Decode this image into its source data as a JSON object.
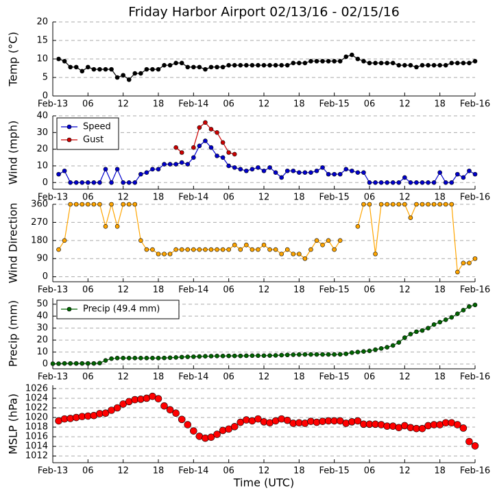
{
  "title": "Friday Harbor Airport 02/13/16 - 02/15/16",
  "xlabel": "Time (UTC)",
  "chart_data": [
    {
      "type": "line",
      "ylabel": "Temp (°C)",
      "color": "#000000",
      "grid": true,
      "xlim": [
        0,
        72
      ],
      "xticks": [
        {
          "value": 0,
          "label": "Feb-13"
        },
        {
          "value": 6,
          "label": "06"
        },
        12,
        18,
        {
          "value": 24,
          "label": "Feb-14"
        },
        {
          "value": 30,
          "label": "06"
        },
        {
          "value": 36,
          "label": "12"
        },
        {
          "value": 42,
          "label": "18"
        },
        {
          "value": 48,
          "label": "Feb-15"
        },
        {
          "value": 54,
          "label": "06"
        },
        {
          "value": 60,
          "label": "12"
        },
        {
          "value": 66,
          "label": "18"
        },
        {
          "value": 72,
          "label": "Feb-16"
        }
      ],
      "ylim": [
        0,
        20
      ],
      "yticks": [
        0,
        5,
        10,
        15,
        20
      ],
      "x": [
        1,
        2,
        3,
        4,
        5,
        6,
        7,
        8,
        9,
        10,
        11,
        12,
        13,
        14,
        15,
        16,
        17,
        18,
        19,
        20,
        21,
        22,
        23,
        24,
        25,
        26,
        27,
        28,
        29,
        30,
        31,
        32,
        33,
        34,
        35,
        36,
        37,
        38,
        39,
        40,
        41,
        42,
        43,
        44,
        45,
        46,
        47,
        48,
        49,
        50,
        51,
        52,
        53,
        54,
        55,
        56,
        57,
        58,
        59,
        60,
        61,
        62,
        63,
        64,
        65,
        66,
        67,
        68,
        69,
        70,
        71,
        72
      ],
      "values": [
        10,
        9.4,
        7.8,
        7.8,
        6.7,
        7.8,
        7.2,
        7.2,
        7.2,
        7.2,
        5,
        5.6,
        4.4,
        6.1,
        6.1,
        7.2,
        7.2,
        7.2,
        8.3,
        8.3,
        8.9,
        8.9,
        7.8,
        7.8,
        7.8,
        7.2,
        7.8,
        7.8,
        7.8,
        8.3,
        8.3,
        8.3,
        8.3,
        8.3,
        8.3,
        8.3,
        8.3,
        8.3,
        8.3,
        8.3,
        8.9,
        8.9,
        8.9,
        9.4,
        9.4,
        9.4,
        9.4,
        9.4,
        9.4,
        10.6,
        11.1,
        10,
        9.4,
        8.9,
        8.9,
        8.9,
        8.9,
        8.9,
        8.3,
        8.3,
        8.3,
        7.8,
        8.3,
        8.3,
        8.3,
        8.3,
        8.3,
        8.9,
        8.9,
        8.9,
        8.9,
        9.4
      ]
    },
    {
      "type": "line",
      "ylabel": "Wind (mph)",
      "grid": true,
      "legend": "upper left",
      "xlim": [
        0,
        72
      ],
      "xticks": [
        {
          "value": 0,
          "label": "Feb-13"
        },
        {
          "value": 6,
          "label": "06"
        },
        12,
        18,
        {
          "value": 24,
          "label": "Feb-14"
        },
        {
          "value": 30,
          "label": "06"
        },
        {
          "value": 36,
          "label": "12"
        },
        {
          "value": 42,
          "label": "18"
        },
        {
          "value": 48,
          "label": "Feb-15"
        },
        {
          "value": 54,
          "label": "06"
        },
        {
          "value": 60,
          "label": "12"
        },
        {
          "value": 66,
          "label": "18"
        },
        {
          "value": 72,
          "label": "Feb-16"
        }
      ],
      "ylim": [
        -4,
        40
      ],
      "yticks": [
        0,
        10,
        20,
        30,
        40
      ],
      "x": [
        1,
        2,
        3,
        4,
        5,
        6,
        7,
        8,
        9,
        10,
        11,
        12,
        13,
        14,
        15,
        16,
        17,
        18,
        19,
        20,
        21,
        22,
        23,
        24,
        25,
        26,
        27,
        28,
        29,
        30,
        31,
        32,
        33,
        34,
        35,
        36,
        37,
        38,
        39,
        40,
        41,
        42,
        43,
        44,
        45,
        46,
        47,
        48,
        49,
        50,
        51,
        52,
        53,
        54,
        55,
        56,
        57,
        58,
        59,
        60,
        61,
        62,
        63,
        64,
        65,
        66,
        67,
        68,
        69,
        70,
        71,
        72
      ],
      "series": [
        {
          "name": "Speed",
          "color": "#0000cc",
          "values": [
            5,
            7,
            0,
            0,
            0,
            0,
            0,
            0,
            8,
            0,
            8,
            0,
            0,
            0,
            5,
            6,
            8,
            8,
            11,
            11,
            11,
            12,
            11,
            15,
            22,
            25,
            21,
            16,
            15,
            10,
            9,
            8,
            7,
            8,
            9,
            7,
            9,
            6,
            3,
            7,
            7,
            6,
            6,
            6,
            7,
            9,
            5,
            5,
            5,
            8,
            7,
            6,
            6,
            0,
            0,
            0,
            0,
            0,
            0,
            3,
            0,
            0,
            0,
            0,
            0,
            6,
            0,
            0,
            5,
            3,
            7,
            5
          ]
        },
        {
          "name": "Gust",
          "color": "#cc0000",
          "values": [
            null,
            null,
            null,
            null,
            null,
            null,
            null,
            null,
            null,
            null,
            null,
            null,
            null,
            null,
            null,
            null,
            null,
            null,
            null,
            null,
            21,
            18,
            null,
            21,
            33,
            36,
            32,
            30,
            24,
            18,
            17,
            null,
            null,
            null,
            null,
            null,
            null,
            null,
            null,
            null,
            null,
            null,
            null,
            null,
            null,
            null,
            null,
            null,
            null,
            null,
            null,
            null,
            null,
            null,
            null,
            null,
            null,
            null,
            null,
            null,
            null,
            null,
            null,
            null,
            null,
            null,
            null,
            null,
            null,
            null,
            null,
            null
          ]
        }
      ]
    },
    {
      "type": "line",
      "ylabel": "Wind Direction",
      "color": "#ffa500",
      "grid": true,
      "xlim": [
        0,
        72
      ],
      "xticks": [
        {
          "value": 0,
          "label": "Feb-13"
        },
        {
          "value": 6,
          "label": "06"
        },
        12,
        18,
        {
          "value": 24,
          "label": "Feb-14"
        },
        {
          "value": 30,
          "label": "06"
        },
        {
          "value": 36,
          "label": "12"
        },
        {
          "value": 42,
          "label": "18"
        },
        {
          "value": 48,
          "label": "Feb-15"
        },
        {
          "value": 54,
          "label": "06"
        },
        {
          "value": 60,
          "label": "12"
        },
        {
          "value": 66,
          "label": "18"
        },
        {
          "value": 72,
          "label": "Feb-16"
        }
      ],
      "ylim": [
        -25,
        360
      ],
      "yticks": [
        0,
        90,
        180,
        270,
        360
      ],
      "x": [
        1,
        2,
        3,
        4,
        5,
        6,
        7,
        8,
        9,
        10,
        11,
        12,
        13,
        14,
        15,
        16,
        17,
        18,
        19,
        20,
        21,
        22,
        23,
        24,
        25,
        26,
        27,
        28,
        29,
        30,
        31,
        32,
        33,
        34,
        35,
        36,
        37,
        38,
        39,
        40,
        41,
        42,
        43,
        44,
        45,
        46,
        47,
        48,
        49,
        50,
        51,
        52,
        53,
        54,
        55,
        56,
        57,
        58,
        59,
        60,
        61,
        62,
        63,
        64,
        65,
        66,
        67,
        68,
        69,
        70,
        71,
        72
      ],
      "values": [
        135,
        180,
        360,
        360,
        360,
        360,
        360,
        360,
        250,
        360,
        250,
        360,
        360,
        360,
        180,
        135,
        135,
        113,
        113,
        113,
        135,
        135,
        135,
        135,
        135,
        135,
        135,
        135,
        135,
        135,
        158,
        135,
        158,
        135,
        135,
        158,
        135,
        135,
        113,
        135,
        113,
        113,
        90,
        135,
        180,
        158,
        180,
        135,
        180,
        null,
        null,
        250,
        360,
        360,
        113,
        360,
        360,
        360,
        360,
        360,
        293,
        360,
        360,
        360,
        360,
        360,
        360,
        360,
        23,
        68,
        68,
        90
      ]
    },
    {
      "type": "line",
      "ylabel": "Precip (mm)",
      "grid": true,
      "legend": "upper left",
      "xlim": [
        0,
        72
      ],
      "xticks": [
        {
          "value": 0,
          "label": "Feb-13"
        },
        {
          "value": 6,
          "label": "06"
        },
        12,
        18,
        {
          "value": 24,
          "label": "Feb-14"
        },
        {
          "value": 30,
          "label": "06"
        },
        {
          "value": 36,
          "label": "12"
        },
        {
          "value": 42,
          "label": "18"
        },
        {
          "value": 48,
          "label": "Feb-15"
        },
        {
          "value": 54,
          "label": "06"
        },
        {
          "value": 60,
          "label": "12"
        },
        {
          "value": 66,
          "label": "18"
        },
        {
          "value": 72,
          "label": "Feb-16"
        }
      ],
      "ylim": [
        -4,
        55
      ],
      "yticks": [
        0,
        10,
        20,
        30,
        40,
        50
      ],
      "x": [
        0,
        1,
        2,
        3,
        4,
        5,
        6,
        7,
        8,
        9,
        10,
        11,
        12,
        13,
        14,
        15,
        16,
        17,
        18,
        19,
        20,
        21,
        22,
        23,
        24,
        25,
        26,
        27,
        28,
        29,
        30,
        31,
        32,
        33,
        34,
        35,
        36,
        37,
        38,
        39,
        40,
        41,
        42,
        43,
        44,
        45,
        46,
        47,
        48,
        49,
        50,
        51,
        52,
        53,
        54,
        55,
        56,
        57,
        58,
        59,
        60,
        61,
        62,
        63,
        64,
        65,
        66,
        67,
        68,
        69,
        70,
        71,
        72
      ],
      "series": [
        {
          "name": "Precip (49.4 mm)",
          "color": "#006400",
          "values": [
            0.3,
            0.3,
            0.5,
            0.5,
            0.5,
            0.5,
            0.5,
            0.5,
            0.8,
            3,
            4.5,
            5,
            5,
            5,
            5,
            5,
            5,
            5,
            5,
            5.1,
            5.3,
            5.5,
            5.8,
            6,
            6.1,
            6.3,
            6.5,
            6.6,
            6.7,
            6.7,
            6.8,
            6.8,
            6.8,
            6.9,
            7,
            7,
            7,
            7.1,
            7.2,
            7.4,
            7.6,
            7.8,
            7.9,
            8,
            8,
            8,
            8,
            8,
            8,
            8.1,
            8.5,
            9.5,
            10,
            10.5,
            11,
            12,
            13,
            14,
            15.5,
            18,
            22,
            25,
            27,
            28,
            30,
            33,
            35,
            37,
            39,
            42,
            45,
            48,
            49.4
          ]
        }
      ]
    },
    {
      "type": "scatter",
      "ylabel": "MSLP (hPa)",
      "color": "#ff0000",
      "grid": true,
      "xlim": [
        0,
        72
      ],
      "xticks": [
        {
          "value": 0,
          "label": "Feb-13"
        },
        {
          "value": 6,
          "label": "06"
        },
        12,
        18,
        {
          "value": 24,
          "label": "Feb-14"
        },
        {
          "value": 30,
          "label": "06"
        },
        {
          "value": 36,
          "label": "12"
        },
        {
          "value": 42,
          "label": "18"
        },
        {
          "value": 48,
          "label": "Feb-15"
        },
        {
          "value": 54,
          "label": "06"
        },
        {
          "value": 60,
          "label": "12"
        },
        {
          "value": 66,
          "label": "18"
        },
        {
          "value": 72,
          "label": "Feb-16"
        }
      ],
      "ylim": [
        1010.6,
        1026.7
      ],
      "yticks": [
        1012,
        1014,
        1016,
        1018,
        1020,
        1022,
        1024,
        1026
      ],
      "x": [
        1,
        2,
        3,
        4,
        5,
        6,
        7,
        8,
        9,
        10,
        11,
        12,
        13,
        14,
        15,
        16,
        17,
        18,
        19,
        20,
        21,
        22,
        23,
        24,
        25,
        26,
        27,
        28,
        29,
        30,
        31,
        32,
        33,
        34,
        35,
        36,
        37,
        38,
        39,
        40,
        41,
        42,
        43,
        44,
        45,
        46,
        47,
        48,
        49,
        50,
        51,
        52,
        53,
        54,
        55,
        56,
        57,
        58,
        59,
        60,
        61,
        62,
        63,
        64,
        65,
        66,
        67,
        68,
        69,
        70,
        71,
        72
      ],
      "values": [
        1019.3,
        1019.7,
        1019.8,
        1020,
        1020.2,
        1020.3,
        1020.4,
        1020.8,
        1020.9,
        1021.5,
        1022,
        1022.8,
        1023.3,
        1023.7,
        1023.8,
        1024,
        1024.4,
        1023.9,
        1022.4,
        1021.6,
        1020.9,
        1019.6,
        1018.5,
        1017.2,
        1016.1,
        1015.7,
        1015.9,
        1016.5,
        1017.3,
        1017.6,
        1018.1,
        1019,
        1019.5,
        1019.3,
        1019.7,
        1019.1,
        1018.9,
        1019.3,
        1019.7,
        1019.4,
        1018.8,
        1018.9,
        1018.8,
        1019.2,
        1019,
        1019.2,
        1019.3,
        1019.3,
        1019.3,
        1018.8,
        1019.1,
        1019.3,
        1018.6,
        1018.6,
        1018.6,
        1018.5,
        1018.2,
        1018.2,
        1017.9,
        1018.3,
        1017.9,
        1017.7,
        1017.7,
        1018.3,
        1018.5,
        1018.5,
        1018.9,
        1018.9,
        1018.5,
        1017.8,
        1015,
        1014.1
      ]
    }
  ]
}
